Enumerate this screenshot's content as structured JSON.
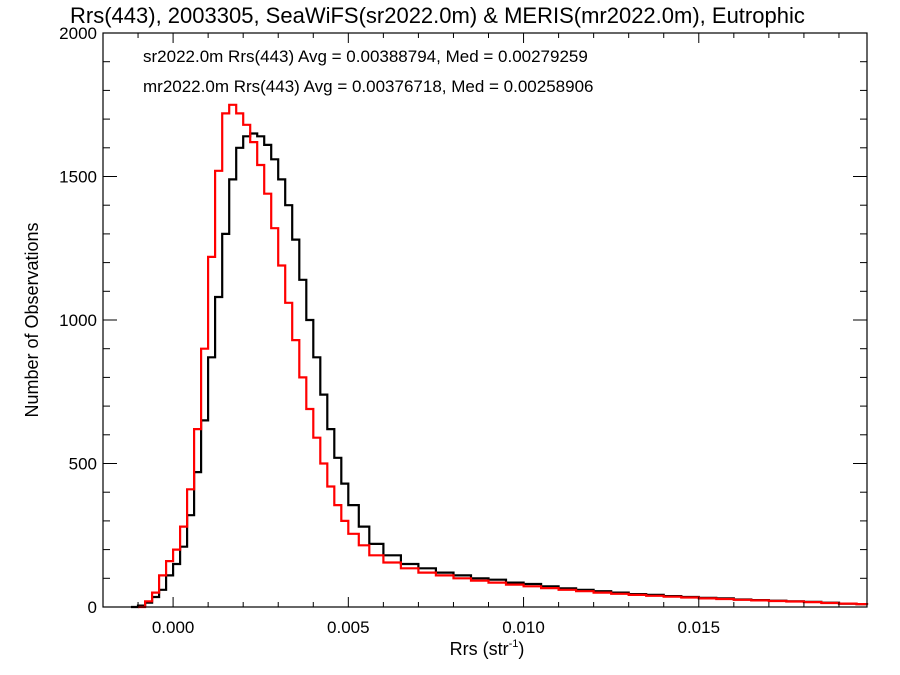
{
  "chart_data": {
    "type": "line",
    "title": "Rrs(443), 2003305, SeaWiFS(sr2022.0m) & MERIS(mr2022.0m), Eutrophic",
    "xlabel": "Rrs (str",
    "xlabel_sup": "-1",
    "xlabel_close": ")",
    "ylabel": "Number of Observations",
    "xlim": [
      -0.002,
      0.0198
    ],
    "ylim": [
      0,
      2000
    ],
    "x_ticks": [
      0.0,
      0.005,
      0.01,
      0.015
    ],
    "x_tick_labels": [
      "0.000",
      "0.005",
      "0.010",
      "0.015"
    ],
    "y_ticks": [
      0,
      500,
      1000,
      1500,
      2000
    ],
    "y_tick_labels": [
      "0",
      "500",
      "1000",
      "1500",
      "2000"
    ],
    "annotations": [
      {
        "text": "sr2022.0m Rrs(443) Avg = 0.00388794, Med = 0.00279259",
        "color": "#000000"
      },
      {
        "text": "mr2022.0m Rrs(443) Avg = 0.00376718, Med = 0.00258906",
        "color": "#ff0000"
      }
    ],
    "series": [
      {
        "color": "#000000",
        "step": true,
        "points": [
          [
            -0.0012,
            0
          ],
          [
            -0.001,
            5
          ],
          [
            -0.0008,
            15
          ],
          [
            -0.0006,
            35
          ],
          [
            -0.0004,
            60
          ],
          [
            -0.0002,
            110
          ],
          [
            0.0,
            150
          ],
          [
            0.0002,
            210
          ],
          [
            0.0004,
            320
          ],
          [
            0.0006,
            470
          ],
          [
            0.0008,
            650
          ],
          [
            0.001,
            870
          ],
          [
            0.0012,
            1080
          ],
          [
            0.0014,
            1300
          ],
          [
            0.0016,
            1490
          ],
          [
            0.0018,
            1600
          ],
          [
            0.002,
            1640
          ],
          [
            0.0022,
            1650
          ],
          [
            0.0024,
            1640
          ],
          [
            0.0026,
            1610
          ],
          [
            0.0028,
            1560
          ],
          [
            0.003,
            1490
          ],
          [
            0.0032,
            1400
          ],
          [
            0.0034,
            1280
          ],
          [
            0.0036,
            1140
          ],
          [
            0.0038,
            1000
          ],
          [
            0.004,
            870
          ],
          [
            0.0042,
            740
          ],
          [
            0.0044,
            620
          ],
          [
            0.0046,
            520
          ],
          [
            0.0048,
            430
          ],
          [
            0.005,
            355
          ],
          [
            0.0053,
            280
          ],
          [
            0.0056,
            220
          ],
          [
            0.006,
            180
          ],
          [
            0.0065,
            150
          ],
          [
            0.007,
            135
          ],
          [
            0.0075,
            120
          ],
          [
            0.008,
            110
          ],
          [
            0.0085,
            100
          ],
          [
            0.009,
            95
          ],
          [
            0.0095,
            85
          ],
          [
            0.01,
            80
          ],
          [
            0.0105,
            72
          ],
          [
            0.011,
            65
          ],
          [
            0.0115,
            60
          ],
          [
            0.012,
            55
          ],
          [
            0.0125,
            50
          ],
          [
            0.013,
            45
          ],
          [
            0.0135,
            42
          ],
          [
            0.014,
            38
          ],
          [
            0.0145,
            35
          ],
          [
            0.015,
            32
          ],
          [
            0.0155,
            30
          ],
          [
            0.016,
            26
          ],
          [
            0.0165,
            24
          ],
          [
            0.017,
            22
          ],
          [
            0.0175,
            20
          ],
          [
            0.018,
            18
          ],
          [
            0.0185,
            15
          ],
          [
            0.019,
            12
          ],
          [
            0.0195,
            10
          ],
          [
            0.0198,
            8
          ]
        ]
      },
      {
        "color": "#ff0000",
        "step": true,
        "points": [
          [
            -0.001,
            0
          ],
          [
            -0.0008,
            20
          ],
          [
            -0.0006,
            50
          ],
          [
            -0.0004,
            110
          ],
          [
            -0.0002,
            160
          ],
          [
            0.0,
            200
          ],
          [
            0.0002,
            280
          ],
          [
            0.0004,
            410
          ],
          [
            0.0006,
            620
          ],
          [
            0.0008,
            900
          ],
          [
            0.001,
            1220
          ],
          [
            0.0012,
            1520
          ],
          [
            0.0014,
            1720
          ],
          [
            0.0016,
            1750
          ],
          [
            0.0018,
            1720
          ],
          [
            0.002,
            1680
          ],
          [
            0.0022,
            1620
          ],
          [
            0.0024,
            1540
          ],
          [
            0.0026,
            1440
          ],
          [
            0.0028,
            1320
          ],
          [
            0.003,
            1190
          ],
          [
            0.0032,
            1060
          ],
          [
            0.0034,
            930
          ],
          [
            0.0036,
            800
          ],
          [
            0.0038,
            690
          ],
          [
            0.004,
            590
          ],
          [
            0.0042,
            500
          ],
          [
            0.0044,
            420
          ],
          [
            0.0046,
            355
          ],
          [
            0.0048,
            300
          ],
          [
            0.005,
            255
          ],
          [
            0.0053,
            215
          ],
          [
            0.0056,
            180
          ],
          [
            0.006,
            155
          ],
          [
            0.0065,
            135
          ],
          [
            0.007,
            120
          ],
          [
            0.0075,
            110
          ],
          [
            0.008,
            100
          ],
          [
            0.0085,
            92
          ],
          [
            0.009,
            85
          ],
          [
            0.0095,
            78
          ],
          [
            0.01,
            72
          ],
          [
            0.0105,
            66
          ],
          [
            0.011,
            60
          ],
          [
            0.0115,
            55
          ],
          [
            0.012,
            50
          ],
          [
            0.0125,
            46
          ],
          [
            0.013,
            42
          ],
          [
            0.0135,
            39
          ],
          [
            0.014,
            36
          ],
          [
            0.0145,
            33
          ],
          [
            0.015,
            30
          ],
          [
            0.0155,
            28
          ],
          [
            0.016,
            25
          ],
          [
            0.0165,
            23
          ],
          [
            0.017,
            21
          ],
          [
            0.0175,
            19
          ],
          [
            0.018,
            17
          ],
          [
            0.0185,
            14
          ],
          [
            0.019,
            12
          ],
          [
            0.0195,
            10
          ],
          [
            0.0198,
            8
          ]
        ]
      }
    ],
    "grid": false,
    "legend": "none"
  }
}
